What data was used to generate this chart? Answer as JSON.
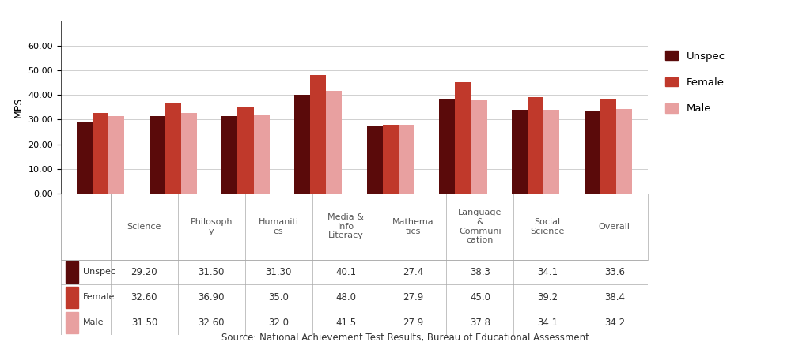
{
  "categories": [
    "Science",
    "Philosoph\ny",
    "Humaniti\nes",
    "Media &\nInfo\nLiteracy",
    "Mathema\ntics",
    "Language\n&\nCommuni\ncation",
    "Social\nScience",
    "Overall"
  ],
  "series": {
    "Unspec": [
      29.2,
      31.5,
      31.3,
      40.1,
      27.4,
      38.3,
      34.1,
      33.6
    ],
    "Female": [
      32.6,
      36.9,
      35.0,
      48.0,
      27.9,
      45.0,
      39.2,
      38.4
    ],
    "Male": [
      31.5,
      32.6,
      32.0,
      41.5,
      27.9,
      37.8,
      34.1,
      34.2
    ]
  },
  "table_values": {
    "Unspec": [
      "29.20",
      "31.50",
      "31.30",
      "40.1",
      "27.4",
      "38.3",
      "34.1",
      "33.6"
    ],
    "Female": [
      "32.60",
      "36.90",
      "35.0",
      "48.0",
      "27.9",
      "45.0",
      "39.2",
      "38.4"
    ],
    "Male": [
      "31.50",
      "32.60",
      "32.0",
      "41.5",
      "27.9",
      "37.8",
      "34.1",
      "34.2"
    ]
  },
  "colors": {
    "Unspec": "#5a0a0a",
    "Female": "#c0392b",
    "Male": "#e8a0a0"
  },
  "ylim": [
    0,
    70
  ],
  "ytick_vals": [
    0,
    10,
    20,
    30,
    40,
    50,
    60
  ],
  "ytick_labels": [
    "0.00",
    "10.00",
    "20.00",
    "30.00",
    "40.00",
    "50.00",
    "60.00"
  ],
  "ylabel": "MPS",
  "source": "Source: National Achievement Test Results, Bureau of Educational Assessment",
  "bar_width": 0.22,
  "background_color": "#ffffff"
}
